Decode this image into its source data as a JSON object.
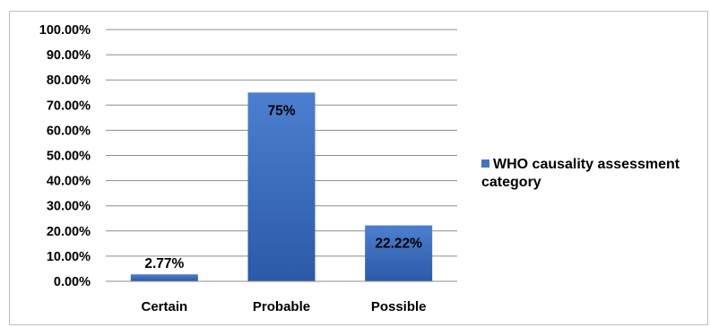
{
  "chart_data": {
    "type": "bar",
    "categories": [
      "Certain",
      "Probable",
      "Possible"
    ],
    "series": [
      {
        "name": "WHO causality assessment category",
        "values": [
          2.77,
          75,
          22.22
        ],
        "data_labels": [
          "2.77%",
          "75%",
          "22.22%"
        ],
        "color": "#4472c4"
      }
    ],
    "ylim": [
      0,
      100
    ],
    "ytick_labels": [
      "0.00%",
      "10.00%",
      "20.00%",
      "30.00%",
      "40.00%",
      "50.00%",
      "60.00%",
      "70.00%",
      "80.00%",
      "90.00%",
      "100.00%"
    ],
    "grid": true,
    "legend": "right"
  }
}
